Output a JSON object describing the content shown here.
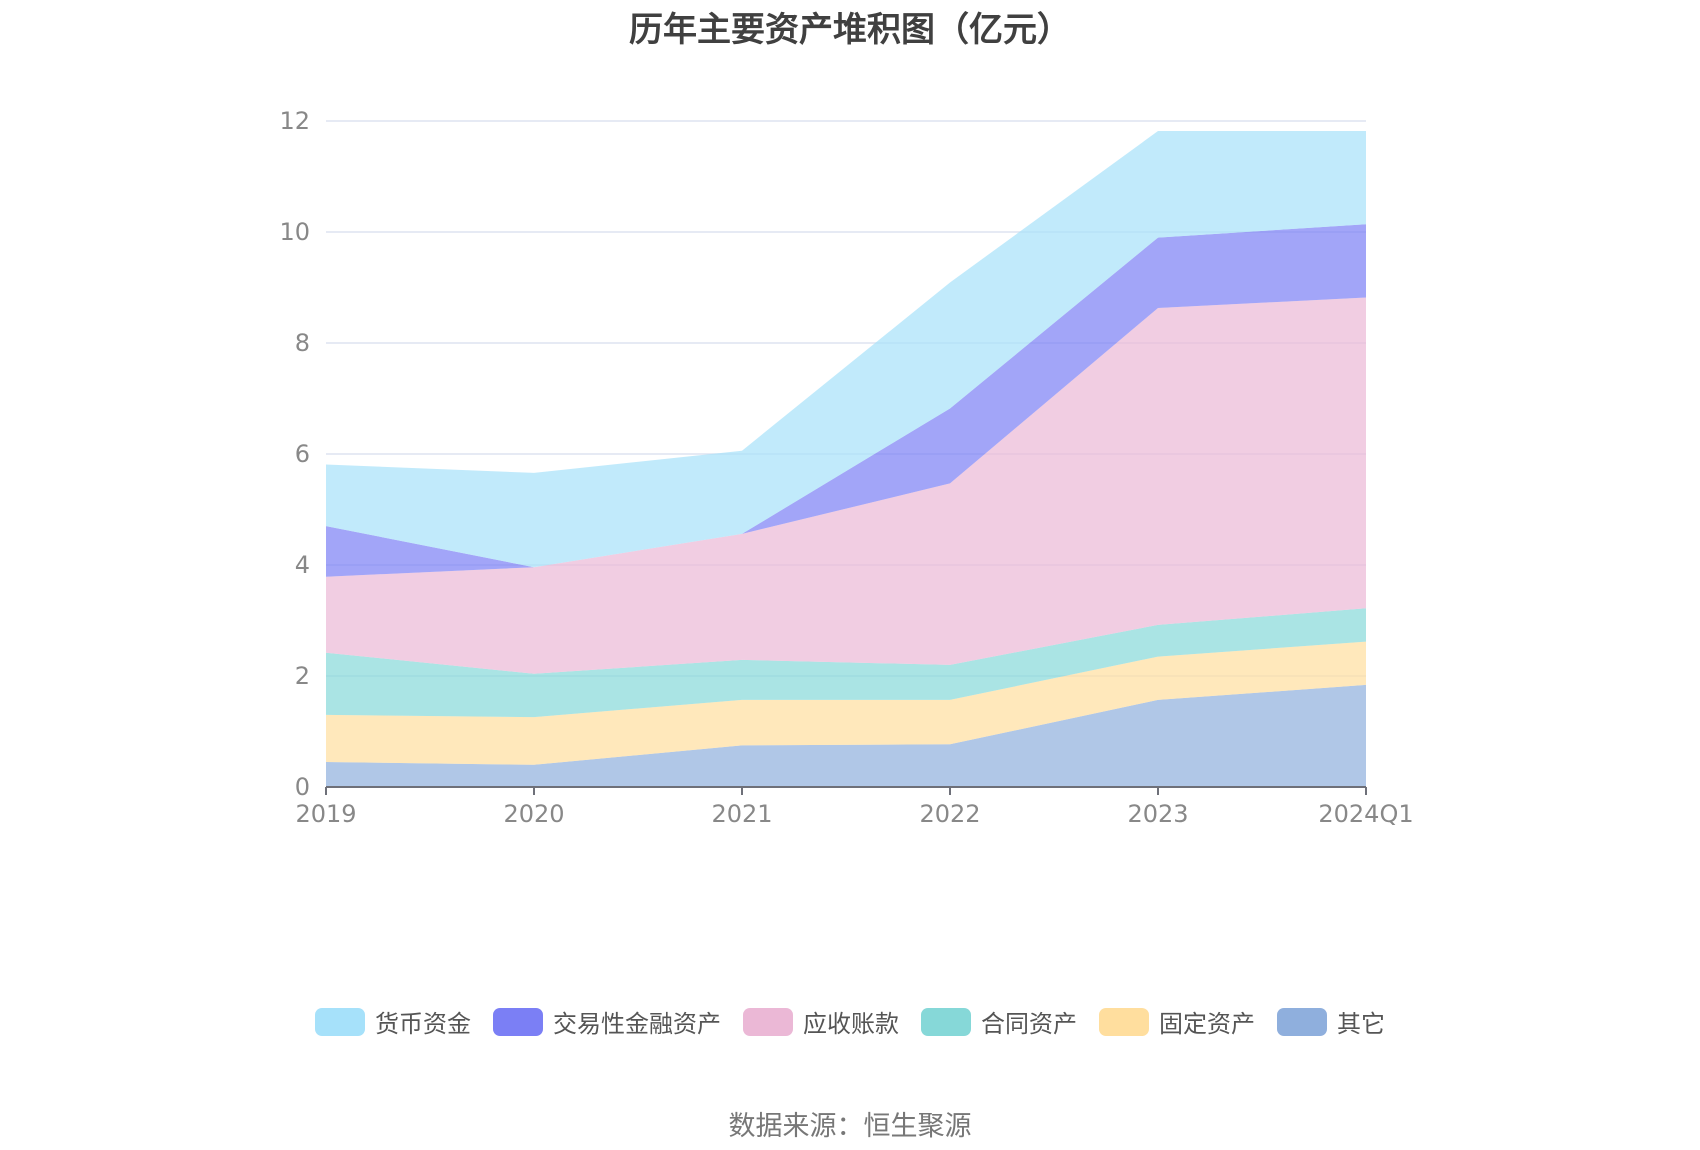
{
  "chart_data": {
    "type": "area",
    "stacked": true,
    "title": "历年主要资产堆积图（亿元）",
    "categories": [
      "2019",
      "2020",
      "2021",
      "2022",
      "2023",
      "2024Q1"
    ],
    "ylim": [
      0,
      12
    ],
    "yticks": [
      0,
      2,
      4,
      6,
      8,
      10,
      12
    ],
    "grid": true,
    "legend_position": "bottom",
    "series": [
      {
        "name": "其它",
        "color": "#8FAFDD",
        "values": [
          0.45,
          0.4,
          0.75,
          0.77,
          1.57,
          1.84
        ]
      },
      {
        "name": "固定资产",
        "color": "#FFDE9E",
        "values": [
          0.85,
          0.86,
          0.82,
          0.8,
          0.78,
          0.78
        ]
      },
      {
        "name": "合同资产",
        "color": "#86D8D8",
        "values": [
          1.12,
          0.78,
          0.72,
          0.63,
          0.57,
          0.6
        ]
      },
      {
        "name": "应收账款",
        "color": "#EBB8D6",
        "values": [
          1.37,
          1.92,
          2.27,
          3.27,
          5.71,
          5.6
        ]
      },
      {
        "name": "交易性金融资产",
        "color": "#7B7FF5",
        "values": [
          0.91,
          0.0,
          0.0,
          1.35,
          1.27,
          1.32
        ]
      },
      {
        "name": "货币资金",
        "color": "#A6E1FA",
        "values": [
          1.11,
          1.7,
          1.5,
          2.27,
          1.92,
          1.68
        ]
      }
    ],
    "legend_order": [
      "货币资金",
      "交易性金融资产",
      "应收账款",
      "合同资产",
      "固定资产",
      "其它"
    ]
  },
  "source": "数据来源：恒生聚源"
}
